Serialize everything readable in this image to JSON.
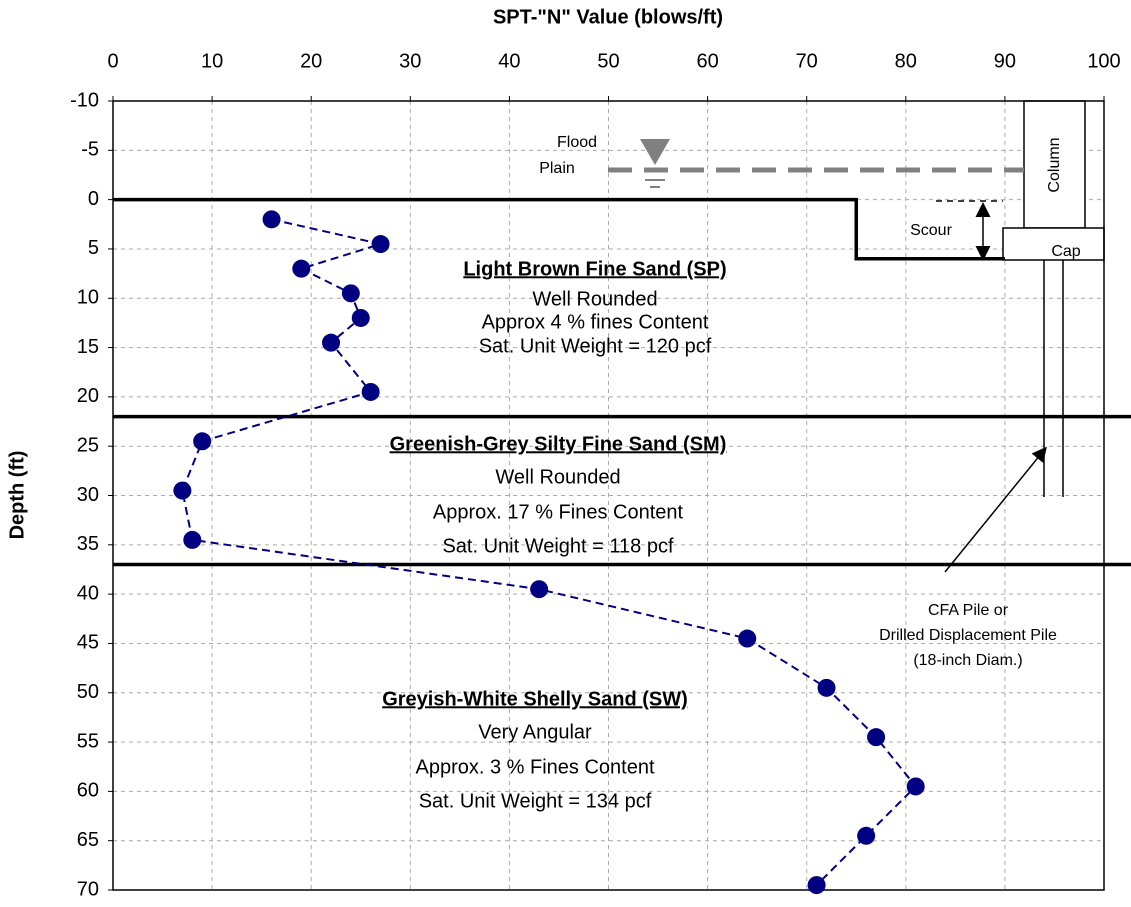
{
  "chart_data": {
    "type": "line",
    "x_label": "SPT-\"N\" Value (blows/ft)",
    "y_label": "Depth (ft)",
    "xlim": [
      0,
      100
    ],
    "xticks": [
      0,
      10,
      20,
      30,
      40,
      50,
      60,
      70,
      80,
      90,
      100
    ],
    "ylim": [
      -10,
      70
    ],
    "yticks": [
      -10,
      -5,
      0,
      5,
      10,
      15,
      20,
      25,
      30,
      35,
      40,
      45,
      50,
      55,
      60,
      65,
      70
    ],
    "y_inverted": true,
    "grid": true,
    "series": [
      {
        "color": "#000080",
        "x": [
          16,
          27,
          19,
          24,
          25,
          22,
          26,
          9,
          7,
          8,
          43,
          64,
          72,
          77,
          81,
          76,
          71
        ],
        "values": [
          2,
          4.5,
          7,
          9.5,
          12,
          14.5,
          19.5,
          24.5,
          29.5,
          34.5,
          39.5,
          44.5,
          49.5,
          54.5,
          59.5,
          64.5,
          69.5
        ]
      }
    ],
    "ground_surface": {
      "x": [
        0,
        75,
        75,
        90
      ],
      "values": [
        0,
        0,
        6,
        6
      ]
    },
    "layer_boundaries": [
      22,
      37
    ],
    "flood_level": -3,
    "layers": [
      {
        "title": "Light Brown Fine Sand (SP)",
        "lines": [
          "Well Rounded",
          "Approx 4 % fines Content",
          "Sat. Unit Weight = 120 pcf"
        ]
      },
      {
        "title": "Greenish-Grey Silty Fine Sand (SM)",
        "lines": [
          "Well Rounded",
          "Approx. 17 % Fines Content",
          "Sat. Unit Weight = 118 pcf"
        ]
      },
      {
        "title": "Greyish-White Shelly Sand (SW)",
        "lines": [
          "Very Angular",
          "Approx. 3 % Fines Content",
          "Sat. Unit Weight = 134 pcf"
        ]
      }
    ],
    "flood_label": [
      "Flood",
      "Plain"
    ],
    "scour_label": "Scour",
    "column_label": "Column",
    "cap_label": "Cap",
    "pile_label": [
      "CFA Pile or",
      "Drilled Displacement Pile",
      "(18-inch Diam.)"
    ]
  }
}
